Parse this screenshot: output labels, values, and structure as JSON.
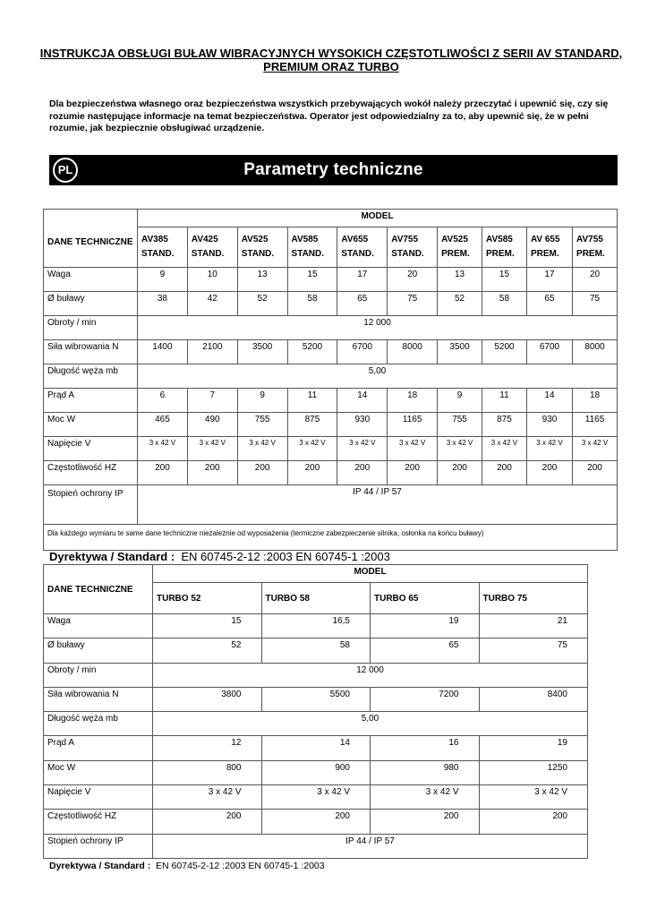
{
  "title": "INSTRUKCJA OBSŁUGI BUŁAW WIBRACYJNYCH WYSOKICH CZĘSTOTLIWOŚCI Z SERII AV STANDARD, PREMIUM ORAZ TURBO",
  "intro": "Dla bezpieczeństwa własnego oraz bezpieczeństwa wszystkich przebywających wokół należy przeczytać i upewnić się, czy się rozumie następujące informacje na temat bezpieczeństwa. Operator jest odpowiedzialny za to, aby upewnić się, że w pełni rozumie, jak bezpiecznie obsługiwać urządzenie.",
  "banner": {
    "badge": "PL",
    "title": "Parametry techniczne"
  },
  "table1": {
    "model_label": "MODEL",
    "row_header": "DANE TECHNICZNE",
    "models": [
      [
        "AV385",
        "STAND."
      ],
      [
        "AV425",
        "STAND."
      ],
      [
        "AV525",
        "STAND."
      ],
      [
        "AV585",
        "STAND."
      ],
      [
        "AV655",
        "STAND."
      ],
      [
        "AV755",
        "STAND."
      ],
      [
        "AV525",
        "PREM."
      ],
      [
        "AV585",
        "PREM."
      ],
      [
        "AV 655",
        "PREM."
      ],
      [
        "AV755",
        "PREM."
      ]
    ],
    "rows": [
      {
        "label": "Waga",
        "values": [
          "9",
          "10",
          "13",
          "15",
          "17",
          "20",
          "13",
          "15",
          "17",
          "20"
        ]
      },
      {
        "label": "Ø buławy",
        "values": [
          "38",
          "42",
          "52",
          "58",
          "65",
          "75",
          "52",
          "58",
          "65",
          "75"
        ]
      },
      {
        "label": "Obroty / min",
        "span": "12 000"
      },
      {
        "label": "Siła wibrowania N",
        "values": [
          "1400",
          "2100",
          "3500",
          "5200",
          "6700",
          "8000",
          "3500",
          "5200",
          "6700",
          "8000"
        ]
      },
      {
        "label": "Długość węża mb",
        "span": "5,00"
      },
      {
        "label": "Prąd A",
        "values": [
          "6",
          "7",
          "9",
          "11",
          "14",
          "18",
          "9",
          "11",
          "14",
          "18"
        ]
      },
      {
        "label": "Moc W",
        "values": [
          "465",
          "490",
          "755",
          "875",
          "930",
          "1165",
          "755",
          "875",
          "930",
          "1165"
        ]
      },
      {
        "label": "Napięcie V",
        "small": true,
        "values": [
          "3 x 42 V",
          "3 x 42 V",
          "3 x 42 V",
          "3 x 42 V",
          "3 x 42 V",
          "3 x 42 V",
          "3 x 42 V",
          "3 x 42 V",
          "3 x 42 V",
          "3 x 42 V"
        ]
      },
      {
        "label": "Częstotliwość HZ",
        "values": [
          "200",
          "200",
          "200",
          "200",
          "200",
          "200",
          "200",
          "200",
          "200",
          "200"
        ]
      },
      {
        "label": "Stopień ochrony IP",
        "span": "IP 44 / IP 57",
        "tall": true
      }
    ],
    "note": "Dla każdego wymiaru te same dane techniczne niezależnie od wyposażenia (termiczne zabezpieczenie silnika, osłonka na końcu buławy)"
  },
  "directive1": {
    "label": "Dyrektywa / Standard :",
    "value": "EN 60745-2-12 :2003  EN 60745-1 :2003"
  },
  "table2": {
    "model_label": "MODEL",
    "row_header": "DANE TECHNICZNE",
    "models": [
      "TURBO 52",
      "TURBO 58",
      "TURBO 65",
      "TURBO 75"
    ],
    "rows": [
      {
        "label": "Waga",
        "values": [
          "15",
          "16,5",
          "19",
          "21"
        ]
      },
      {
        "label": "Ø buławy",
        "values": [
          "52",
          "58",
          "65",
          "75"
        ]
      },
      {
        "label": "Obroty / min",
        "span": "12 000"
      },
      {
        "label": "Siła wibrowania N",
        "values": [
          "3800",
          "5500",
          "7200",
          "8400"
        ]
      },
      {
        "label": "Długość węża mb",
        "span": "5,00"
      },
      {
        "label": "Prąd A",
        "values": [
          "12",
          "14",
          "16",
          "19"
        ]
      },
      {
        "label": "Moc W",
        "values": [
          "800",
          "900",
          "980",
          "1250"
        ]
      },
      {
        "label": "Napięcie V",
        "values": [
          "3 x 42 V",
          "3 x 42 V",
          "3 x 42 V",
          "3 x 42 V"
        ]
      },
      {
        "label": "Częstotliwość HZ",
        "values": [
          "200",
          "200",
          "200",
          "200"
        ]
      },
      {
        "label": "Stopień ochrony IP",
        "span": "IP 44 / IP 57"
      }
    ]
  },
  "directive2": {
    "label": "Dyrektywa / Standard :",
    "value": "EN 60745-2-12 :2003  EN 60745-1 :2003"
  }
}
